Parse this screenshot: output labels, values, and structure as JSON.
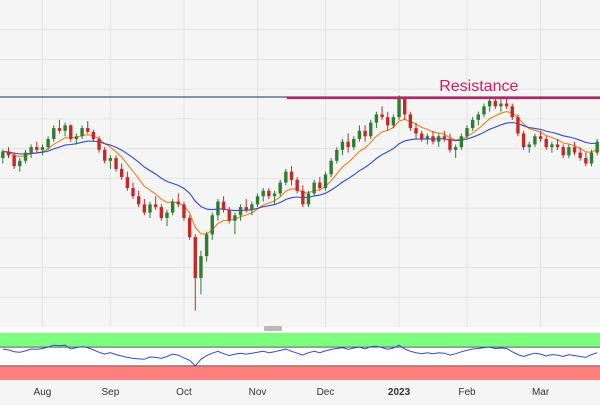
{
  "chart_data": {
    "type": "candlestick",
    "annotation": {
      "label": "Resistance",
      "level": 4.2
    },
    "reference_line": {
      "level": 4.22
    },
    "x_axis": {
      "tick_labels": [
        "Aug",
        "Sep",
        "Oct",
        "Nov",
        "Dec",
        "2023",
        "Feb",
        "Mar"
      ]
    },
    "price_range": [
      0,
      6
    ],
    "oscillator_range": [
      0,
      100
    ],
    "oscillator_bands": {
      "upper": 70,
      "lower": 30,
      "upper_color": "#7cff7c",
      "lower_color": "#ff7f7f"
    },
    "series": [
      {
        "role": "candles",
        "up_color": "#2e7d32",
        "down_color": "#c62828",
        "ohlc": [
          [
            3.1,
            3.26,
            3.0,
            3.22
          ],
          [
            3.22,
            3.3,
            3.1,
            3.15
          ],
          [
            3.15,
            3.2,
            2.9,
            2.95
          ],
          [
            2.95,
            3.1,
            2.85,
            3.05
          ],
          [
            3.05,
            3.25,
            3.0,
            3.2
          ],
          [
            3.2,
            3.35,
            3.1,
            3.3
          ],
          [
            3.3,
            3.4,
            3.2,
            3.25
          ],
          [
            3.25,
            3.35,
            3.15,
            3.3
          ],
          [
            3.3,
            3.5,
            3.25,
            3.45
          ],
          [
            3.45,
            3.7,
            3.4,
            3.65
          ],
          [
            3.65,
            3.8,
            3.55,
            3.6
          ],
          [
            3.6,
            3.75,
            3.5,
            3.7
          ],
          [
            3.7,
            3.72,
            3.4,
            3.45
          ],
          [
            3.45,
            3.55,
            3.35,
            3.5
          ],
          [
            3.5,
            3.7,
            3.45,
            3.65
          ],
          [
            3.65,
            3.78,
            3.55,
            3.58
          ],
          [
            3.58,
            3.62,
            3.4,
            3.45
          ],
          [
            3.45,
            3.5,
            3.2,
            3.25
          ],
          [
            3.25,
            3.3,
            3.0,
            3.05
          ],
          [
            3.05,
            3.15,
            2.9,
            3.1
          ],
          [
            3.1,
            3.15,
            2.85,
            2.9
          ],
          [
            2.9,
            3.0,
            2.7,
            2.75
          ],
          [
            2.75,
            2.85,
            2.5,
            2.55
          ],
          [
            2.55,
            2.65,
            2.35,
            2.4
          ],
          [
            2.4,
            2.5,
            2.2,
            2.25
          ],
          [
            2.25,
            2.35,
            2.05,
            2.1
          ],
          [
            2.1,
            2.3,
            2.0,
            2.25
          ],
          [
            2.25,
            2.4,
            2.15,
            2.2
          ],
          [
            2.2,
            2.25,
            1.95,
            2.0
          ],
          [
            2.0,
            2.15,
            1.85,
            2.1
          ],
          [
            2.1,
            2.35,
            2.05,
            2.3
          ],
          [
            2.3,
            2.45,
            2.2,
            2.25
          ],
          [
            2.25,
            2.3,
            1.95,
            2.0
          ],
          [
            2.0,
            2.05,
            1.6,
            1.65
          ],
          [
            1.65,
            1.7,
            0.3,
            0.9
          ],
          [
            0.9,
            1.4,
            0.6,
            1.3
          ],
          [
            1.3,
            1.75,
            1.2,
            1.7
          ],
          [
            1.7,
            2.1,
            1.6,
            2.05
          ],
          [
            2.05,
            2.35,
            1.95,
            2.3
          ],
          [
            2.3,
            2.4,
            2.1,
            2.15
          ],
          [
            2.15,
            2.2,
            1.9,
            1.95
          ],
          [
            1.95,
            2.1,
            1.7,
            2.05
          ],
          [
            2.05,
            2.25,
            1.95,
            2.2
          ],
          [
            2.2,
            2.35,
            2.1,
            2.15
          ],
          [
            2.15,
            2.3,
            2.05,
            2.25
          ],
          [
            2.25,
            2.45,
            2.2,
            2.4
          ],
          [
            2.4,
            2.55,
            2.3,
            2.5
          ],
          [
            2.5,
            2.55,
            2.35,
            2.4
          ],
          [
            2.4,
            2.5,
            2.25,
            2.45
          ],
          [
            2.45,
            2.7,
            2.4,
            2.65
          ],
          [
            2.65,
            2.9,
            2.6,
            2.85
          ],
          [
            2.85,
            2.95,
            2.6,
            2.7
          ],
          [
            2.7,
            2.75,
            2.45,
            2.5
          ],
          [
            2.5,
            2.6,
            2.2,
            2.25
          ],
          [
            2.25,
            2.5,
            2.2,
            2.45
          ],
          [
            2.45,
            2.7,
            2.4,
            2.65
          ],
          [
            2.65,
            2.75,
            2.5,
            2.55
          ],
          [
            2.55,
            2.85,
            2.5,
            2.8
          ],
          [
            2.8,
            3.1,
            2.75,
            3.05
          ],
          [
            3.05,
            3.3,
            3.0,
            3.25
          ],
          [
            3.25,
            3.45,
            3.15,
            3.4
          ],
          [
            3.4,
            3.55,
            3.2,
            3.3
          ],
          [
            3.3,
            3.5,
            3.25,
            3.45
          ],
          [
            3.45,
            3.7,
            3.4,
            3.6
          ],
          [
            3.6,
            3.7,
            3.4,
            3.5
          ],
          [
            3.5,
            3.8,
            3.45,
            3.75
          ],
          [
            3.75,
            3.95,
            3.65,
            3.9
          ],
          [
            3.9,
            4.05,
            3.8,
            3.85
          ],
          [
            3.85,
            3.95,
            3.6,
            3.7
          ],
          [
            3.7,
            3.9,
            3.65,
            3.85
          ],
          [
            3.85,
            4.25,
            3.8,
            4.2
          ],
          [
            4.2,
            4.22,
            3.8,
            3.9
          ],
          [
            3.9,
            3.95,
            3.6,
            3.65
          ],
          [
            3.65,
            3.75,
            3.45,
            3.55
          ],
          [
            3.55,
            3.6,
            3.4,
            3.45
          ],
          [
            3.45,
            3.55,
            3.35,
            3.5
          ],
          [
            3.5,
            3.6,
            3.35,
            3.4
          ],
          [
            3.4,
            3.55,
            3.3,
            3.5
          ],
          [
            3.5,
            3.6,
            3.4,
            3.45
          ],
          [
            3.45,
            3.55,
            3.2,
            3.25
          ],
          [
            3.25,
            3.35,
            3.1,
            3.3
          ],
          [
            3.3,
            3.55,
            3.25,
            3.5
          ],
          [
            3.5,
            3.7,
            3.45,
            3.65
          ],
          [
            3.65,
            3.85,
            3.6,
            3.8
          ],
          [
            3.8,
            3.95,
            3.7,
            3.9
          ],
          [
            3.9,
            4.1,
            3.85,
            4.05
          ],
          [
            4.05,
            4.2,
            3.95,
            4.15
          ],
          [
            4.15,
            4.22,
            4.0,
            4.05
          ],
          [
            4.05,
            4.2,
            3.95,
            4.1
          ],
          [
            4.1,
            4.2,
            4.0,
            4.05
          ],
          [
            4.05,
            4.1,
            3.8,
            3.85
          ],
          [
            3.85,
            3.9,
            3.5,
            3.55
          ],
          [
            3.55,
            3.6,
            3.25,
            3.3
          ],
          [
            3.3,
            3.4,
            3.2,
            3.35
          ],
          [
            3.35,
            3.55,
            3.3,
            3.5
          ],
          [
            3.5,
            3.6,
            3.4,
            3.45
          ],
          [
            3.45,
            3.5,
            3.25,
            3.3
          ],
          [
            3.3,
            3.4,
            3.2,
            3.35
          ],
          [
            3.35,
            3.45,
            3.25,
            3.3
          ],
          [
            3.3,
            3.35,
            3.1,
            3.15
          ],
          [
            3.15,
            3.35,
            3.1,
            3.3
          ],
          [
            3.3,
            3.4,
            3.15,
            3.2
          ],
          [
            3.2,
            3.3,
            3.05,
            3.1
          ],
          [
            3.1,
            3.2,
            2.95,
            3.0
          ],
          [
            3.0,
            3.25,
            2.95,
            3.2
          ],
          [
            3.2,
            3.45,
            3.15,
            3.4
          ]
        ]
      },
      {
        "role": "fast-ma",
        "color": "#f07f1a"
      },
      {
        "role": "slow-ma",
        "color": "#2f4ad8"
      },
      {
        "role": "oscillator",
        "color": "#2f4ad8",
        "values": [
          66,
          64,
          60,
          59,
          62,
          66,
          65,
          67,
          70,
          74,
          73,
          74,
          66,
          69,
          71,
          69,
          64,
          59,
          55,
          58,
          54,
          51,
          48,
          46,
          45,
          44,
          49,
          48,
          46,
          50,
          55,
          53,
          47,
          42,
          30,
          44,
          52,
          57,
          61,
          56,
          52,
          55,
          57,
          55,
          57,
          59,
          61,
          58,
          60,
          63,
          66,
          61,
          57,
          53,
          58,
          61,
          58,
          62,
          65,
          67,
          69,
          65,
          68,
          70,
          66,
          71,
          72,
          69,
          65,
          68,
          74,
          66,
          61,
          58,
          56,
          58,
          56,
          58,
          57,
          53,
          56,
          60,
          63,
          66,
          67,
          69,
          70,
          67,
          68,
          67,
          60,
          54,
          50,
          54,
          57,
          55,
          51,
          54,
          53,
          50,
          54,
          52,
          50,
          48,
          54,
          58
        ]
      }
    ]
  }
}
